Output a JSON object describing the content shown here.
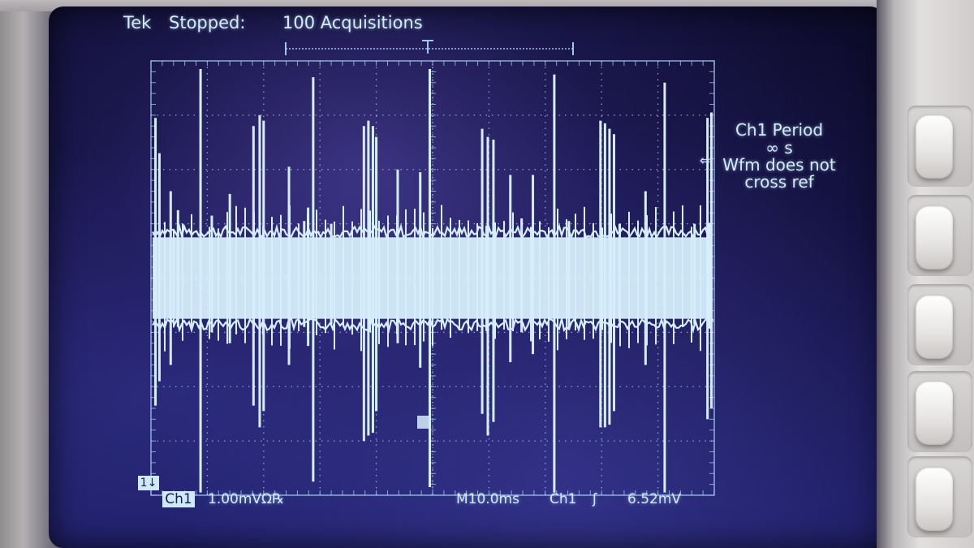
{
  "status": {
    "brand": "Tek",
    "state": "Stopped:",
    "acquisitions": "100 Acquisitions"
  },
  "measurement": {
    "title": "Ch1 Period",
    "value": "∞ s",
    "message_line1": "Wfm does not",
    "message_line2": "cross ref"
  },
  "channel": {
    "ground_marker": "1↓",
    "label": "Ch1",
    "scale": "1.00mVΩ℞"
  },
  "timebase": {
    "scale": "M10.0ms",
    "trigger_source": "Ch1",
    "trigger_slope_icon": "rising-edge-icon",
    "trigger_slope_glyph": "ʃ",
    "trigger_level": "6.52mV"
  },
  "colors": {
    "trace": "#d6eefc",
    "graticule": "#9fc6ee",
    "screen": "#17154a"
  },
  "chart_data": {
    "type": "line",
    "title": "",
    "xlabel": "",
    "ylabel": "",
    "divisions": {
      "x": 10,
      "y": 8
    },
    "x_scale_per_div": "10.0ms",
    "y_scale_per_div": "1.00mV",
    "noise_band_div": [
      -0.75,
      0.75
    ],
    "spikes": [
      {
        "x": 0.08,
        "up": 2.95,
        "down": -2.35
      },
      {
        "x": 0.15,
        "up": 2.3,
        "down": -1.9
      },
      {
        "x": 0.35,
        "up": 1.6,
        "down": -1.6
      },
      {
        "x": 0.48,
        "up": 1.25,
        "down": -0.9
      },
      {
        "x": 0.88,
        "up": 3.85,
        "down": -3.95
      },
      {
        "x": 1.08,
        "up": 1.15,
        "down": -1.0
      },
      {
        "x": 1.4,
        "up": 1.55,
        "down": -1.2
      },
      {
        "x": 1.82,
        "up": 2.8,
        "down": -2.35
      },
      {
        "x": 1.93,
        "up": 3.0,
        "down": -2.75
      },
      {
        "x": 2.0,
        "up": 2.9,
        "down": -2.45
      },
      {
        "x": 2.45,
        "up": 2.05,
        "down": -1.6
      },
      {
        "x": 2.88,
        "up": 3.7,
        "down": -3.75
      },
      {
        "x": 2.79,
        "up": 1.3,
        "down": -1.25
      },
      {
        "x": 2.72,
        "up": 1.05,
        "down": -0.9
      },
      {
        "x": 3.2,
        "up": 1.0,
        "down": -0.85
      },
      {
        "x": 3.78,
        "up": 2.8,
        "down": -3.0
      },
      {
        "x": 3.86,
        "up": 2.9,
        "down": -2.9
      },
      {
        "x": 3.94,
        "up": 2.8,
        "down": -2.85
      },
      {
        "x": 4.0,
        "up": 2.6,
        "down": -2.45
      },
      {
        "x": 4.38,
        "up": 2.0,
        "down": -1.2
      },
      {
        "x": 4.78,
        "up": 1.95,
        "down": -1.65
      },
      {
        "x": 4.95,
        "up": 3.85,
        "down": -3.85
      },
      {
        "x": 5.88,
        "up": 2.75,
        "down": -2.5
      },
      {
        "x": 5.98,
        "up": 2.6,
        "down": -2.9
      },
      {
        "x": 6.08,
        "up": 2.55,
        "down": -2.65
      },
      {
        "x": 6.38,
        "up": 1.9,
        "down": -1.55
      },
      {
        "x": 6.58,
        "up": 1.1,
        "down": -1.0
      },
      {
        "x": 6.78,
        "up": 1.9,
        "down": -1.4
      },
      {
        "x": 7.16,
        "up": 3.75,
        "down": -3.95
      },
      {
        "x": 7.42,
        "up": 1.05,
        "down": -0.95
      },
      {
        "x": 7.98,
        "up": 2.9,
        "down": -2.75
      },
      {
        "x": 8.06,
        "up": 2.85,
        "down": -2.75
      },
      {
        "x": 8.14,
        "up": 2.75,
        "down": -2.7
      },
      {
        "x": 8.22,
        "up": 2.65,
        "down": -2.45
      },
      {
        "x": 8.32,
        "up": 1.0,
        "down": -0.8
      },
      {
        "x": 8.78,
        "up": 1.6,
        "down": -1.6
      },
      {
        "x": 9.12,
        "up": 3.6,
        "down": -3.95
      },
      {
        "x": 9.65,
        "up": 1.0,
        "down": -0.85
      },
      {
        "x": 9.88,
        "up": 2.95,
        "down": -2.6
      },
      {
        "x": 9.95,
        "up": 3.05,
        "down": -2.4
      }
    ]
  }
}
